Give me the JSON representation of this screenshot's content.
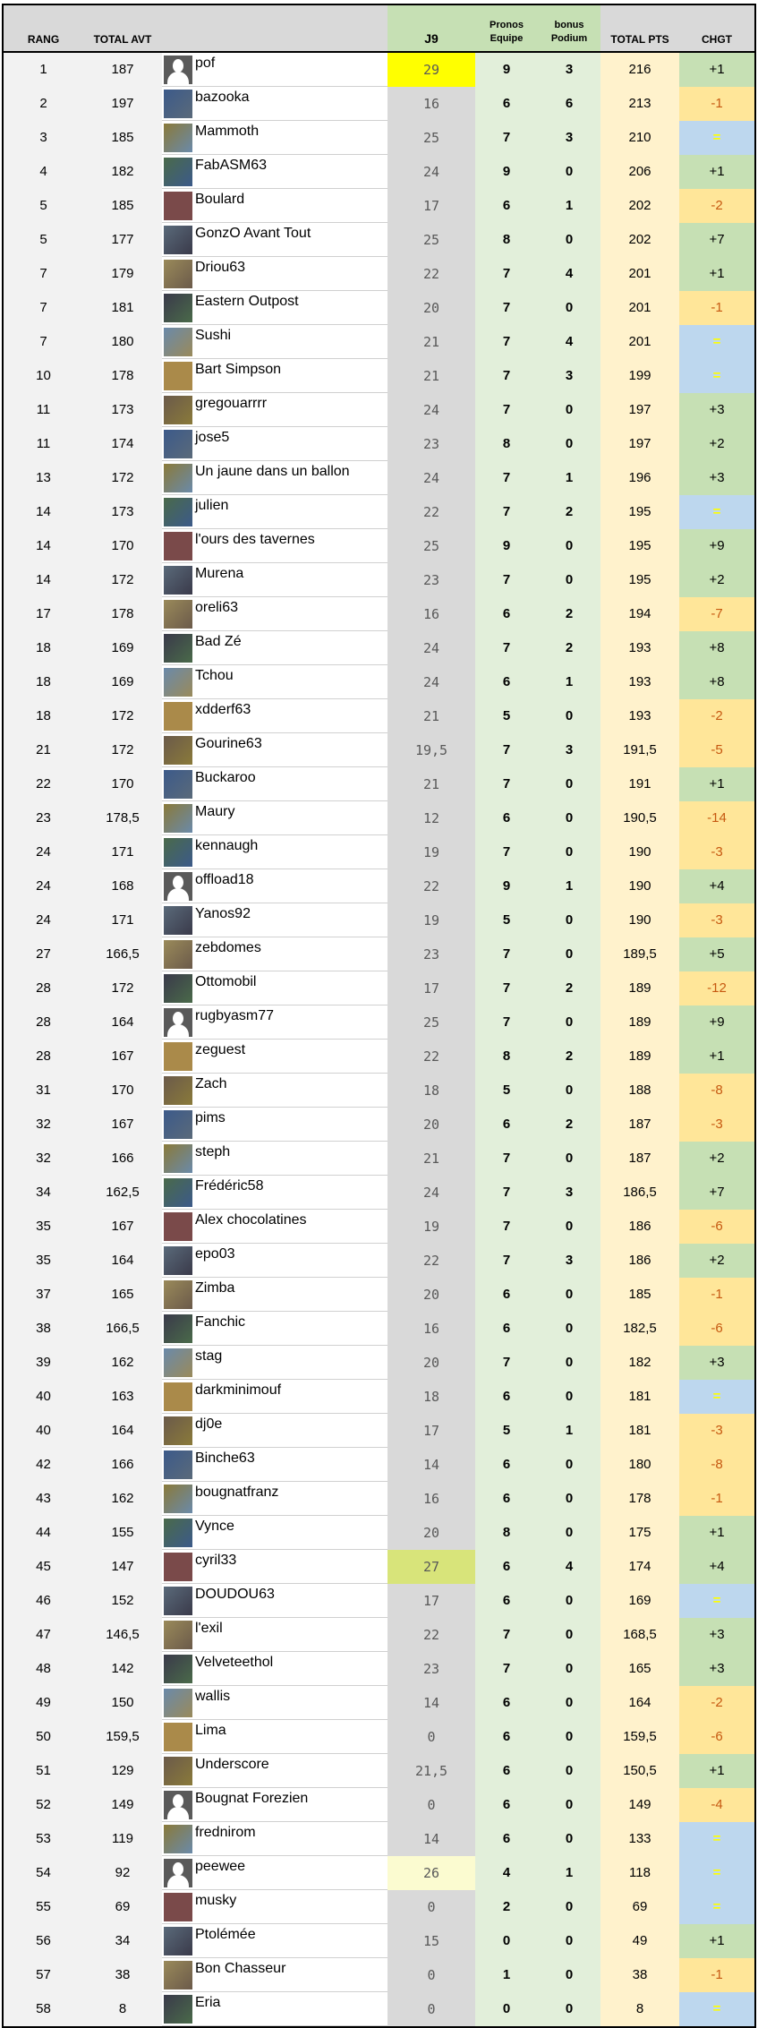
{
  "header": {
    "rang": "RANG",
    "total_avt": "TOTAL AVT",
    "name": "",
    "j9": "J9",
    "pronos": "Pronos Equipe",
    "bonus": "bonus Podium",
    "total_pts": "TOTAL PTS",
    "chgt": "CHGT"
  },
  "colors": {
    "header_bg": "#d9d9d9",
    "header_green": "#c6e0b4",
    "j9_bg": "#d9d9d9",
    "pronos_bg": "#e2efda",
    "total_bg": "#fff2cc",
    "up_bg": "#c6e0b4",
    "down_bg": "#ffe699",
    "down_text": "#c65911",
    "equal_bg": "#bdd7ee",
    "equal_text": "#ffff00",
    "highlight_top": "#ffff00",
    "highlight_second": "#d8e47a",
    "highlight_third": "#fbfbd0"
  },
  "rows": [
    {
      "rang": "1",
      "avt": "187",
      "name": "pof",
      "avatar": "silhouette",
      "j9": "29",
      "pronos": "9",
      "bonus": "3",
      "total": "216",
      "chgt": "+1",
      "j9_highlight": "#ffff00"
    },
    {
      "rang": "2",
      "avt": "197",
      "name": "bazooka",
      "avatar": "photo",
      "j9": "16",
      "pronos": "6",
      "bonus": "6",
      "total": "213",
      "chgt": "-1"
    },
    {
      "rang": "3",
      "avt": "185",
      "name": "Mammoth",
      "avatar": "photo",
      "j9": "25",
      "pronos": "7",
      "bonus": "3",
      "total": "210",
      "chgt": "="
    },
    {
      "rang": "4",
      "avt": "182",
      "name": "FabASM63",
      "avatar": "photo",
      "j9": "24",
      "pronos": "9",
      "bonus": "0",
      "total": "206",
      "chgt": "+1"
    },
    {
      "rang": "5",
      "avt": "185",
      "name": "Boulard",
      "avatar": "photo",
      "j9": "17",
      "pronos": "6",
      "bonus": "1",
      "total": "202",
      "chgt": "-2"
    },
    {
      "rang": "5",
      "avt": "177",
      "name": "GonzO Avant Tout",
      "avatar": "photo",
      "j9": "25",
      "pronos": "8",
      "bonus": "0",
      "total": "202",
      "chgt": "+7"
    },
    {
      "rang": "7",
      "avt": "179",
      "name": "Driou63",
      "avatar": "photo",
      "j9": "22",
      "pronos": "7",
      "bonus": "4",
      "total": "201",
      "chgt": "+1"
    },
    {
      "rang": "7",
      "avt": "181",
      "name": "Eastern Outpost",
      "avatar": "photo",
      "j9": "20",
      "pronos": "7",
      "bonus": "0",
      "total": "201",
      "chgt": "-1"
    },
    {
      "rang": "7",
      "avt": "180",
      "name": "Sushi",
      "avatar": "photo",
      "j9": "21",
      "pronos": "7",
      "bonus": "4",
      "total": "201",
      "chgt": "="
    },
    {
      "rang": "10",
      "avt": "178",
      "name": "Bart Simpson",
      "avatar": "photo",
      "j9": "21",
      "pronos": "7",
      "bonus": "3",
      "total": "199",
      "chgt": "="
    },
    {
      "rang": "11",
      "avt": "173",
      "name": "gregouarrrr",
      "avatar": "photo",
      "j9": "24",
      "pronos": "7",
      "bonus": "0",
      "total": "197",
      "chgt": "+3"
    },
    {
      "rang": "11",
      "avt": "174",
      "name": "jose5",
      "avatar": "photo",
      "j9": "23",
      "pronos": "8",
      "bonus": "0",
      "total": "197",
      "chgt": "+2"
    },
    {
      "rang": "13",
      "avt": "172",
      "name": "Un jaune dans un ballon",
      "avatar": "photo",
      "j9": "24",
      "pronos": "7",
      "bonus": "1",
      "total": "196",
      "chgt": "+3"
    },
    {
      "rang": "14",
      "avt": "173",
      "name": "julien",
      "avatar": "photo",
      "j9": "22",
      "pronos": "7",
      "bonus": "2",
      "total": "195",
      "chgt": "="
    },
    {
      "rang": "14",
      "avt": "170",
      "name": "l'ours des tavernes",
      "avatar": "photo",
      "j9": "25",
      "pronos": "9",
      "bonus": "0",
      "total": "195",
      "chgt": "+9"
    },
    {
      "rang": "14",
      "avt": "172",
      "name": "Murena",
      "avatar": "photo",
      "j9": "23",
      "pronos": "7",
      "bonus": "0",
      "total": "195",
      "chgt": "+2"
    },
    {
      "rang": "17",
      "avt": "178",
      "name": "oreli63",
      "avatar": "photo",
      "j9": "16",
      "pronos": "6",
      "bonus": "2",
      "total": "194",
      "chgt": "-7"
    },
    {
      "rang": "18",
      "avt": "169",
      "name": "Bad Zé",
      "avatar": "photo",
      "j9": "24",
      "pronos": "7",
      "bonus": "2",
      "total": "193",
      "chgt": "+8"
    },
    {
      "rang": "18",
      "avt": "169",
      "name": "Tchou",
      "avatar": "photo",
      "j9": "24",
      "pronos": "6",
      "bonus": "1",
      "total": "193",
      "chgt": "+8"
    },
    {
      "rang": "18",
      "avt": "172",
      "name": "xdderf63",
      "avatar": "photo",
      "j9": "21",
      "pronos": "5",
      "bonus": "0",
      "total": "193",
      "chgt": "-2"
    },
    {
      "rang": "21",
      "avt": "172",
      "name": "Gourine63",
      "avatar": "photo",
      "j9": "19,5",
      "pronos": "7",
      "bonus": "3",
      "total": "191,5",
      "chgt": "-5"
    },
    {
      "rang": "22",
      "avt": "170",
      "name": "Buckaroo",
      "avatar": "photo",
      "j9": "21",
      "pronos": "7",
      "bonus": "0",
      "total": "191",
      "chgt": "+1"
    },
    {
      "rang": "23",
      "avt": "178,5",
      "name": "Maury",
      "avatar": "photo",
      "j9": "12",
      "pronos": "6",
      "bonus": "0",
      "total": "190,5",
      "chgt": "-14"
    },
    {
      "rang": "24",
      "avt": "171",
      "name": "kennaugh",
      "avatar": "photo",
      "j9": "19",
      "pronos": "7",
      "bonus": "0",
      "total": "190",
      "chgt": "-3"
    },
    {
      "rang": "24",
      "avt": "168",
      "name": "offload18",
      "avatar": "silhouette",
      "j9": "22",
      "pronos": "9",
      "bonus": "1",
      "total": "190",
      "chgt": "+4"
    },
    {
      "rang": "24",
      "avt": "171",
      "name": "Yanos92",
      "avatar": "photo",
      "j9": "19",
      "pronos": "5",
      "bonus": "0",
      "total": "190",
      "chgt": "-3"
    },
    {
      "rang": "27",
      "avt": "166,5",
      "name": "zebdomes",
      "avatar": "photo",
      "j9": "23",
      "pronos": "7",
      "bonus": "0",
      "total": "189,5",
      "chgt": "+5"
    },
    {
      "rang": "28",
      "avt": "172",
      "name": "Ottomobil",
      "avatar": "photo",
      "j9": "17",
      "pronos": "7",
      "bonus": "2",
      "total": "189",
      "chgt": "-12"
    },
    {
      "rang": "28",
      "avt": "164",
      "name": "rugbyasm77",
      "avatar": "silhouette",
      "j9": "25",
      "pronos": "7",
      "bonus": "0",
      "total": "189",
      "chgt": "+9"
    },
    {
      "rang": "28",
      "avt": "167",
      "name": "zeguest",
      "avatar": "photo",
      "j9": "22",
      "pronos": "8",
      "bonus": "2",
      "total": "189",
      "chgt": "+1"
    },
    {
      "rang": "31",
      "avt": "170",
      "name": "Zach",
      "avatar": "photo",
      "j9": "18",
      "pronos": "5",
      "bonus": "0",
      "total": "188",
      "chgt": "-8"
    },
    {
      "rang": "32",
      "avt": "167",
      "name": "pims",
      "avatar": "photo",
      "j9": "20",
      "pronos": "6",
      "bonus": "2",
      "total": "187",
      "chgt": "-3"
    },
    {
      "rang": "32",
      "avt": "166",
      "name": "steph",
      "avatar": "photo",
      "j9": "21",
      "pronos": "7",
      "bonus": "0",
      "total": "187",
      "chgt": "+2"
    },
    {
      "rang": "34",
      "avt": "162,5",
      "name": "Frédéric58",
      "avatar": "photo",
      "j9": "24",
      "pronos": "7",
      "bonus": "3",
      "total": "186,5",
      "chgt": "+7"
    },
    {
      "rang": "35",
      "avt": "167",
      "name": "Alex chocolatines",
      "avatar": "photo",
      "j9": "19",
      "pronos": "7",
      "bonus": "0",
      "total": "186",
      "chgt": "-6"
    },
    {
      "rang": "35",
      "avt": "164",
      "name": "epo03",
      "avatar": "photo",
      "j9": "22",
      "pronos": "7",
      "bonus": "3",
      "total": "186",
      "chgt": "+2"
    },
    {
      "rang": "37",
      "avt": "165",
      "name": "Zimba",
      "avatar": "photo",
      "j9": "20",
      "pronos": "6",
      "bonus": "0",
      "total": "185",
      "chgt": "-1"
    },
    {
      "rang": "38",
      "avt": "166,5",
      "name": "Fanchic",
      "avatar": "photo",
      "j9": "16",
      "pronos": "6",
      "bonus": "0",
      "total": "182,5",
      "chgt": "-6"
    },
    {
      "rang": "39",
      "avt": "162",
      "name": "stag",
      "avatar": "photo",
      "j9": "20",
      "pronos": "7",
      "bonus": "0",
      "total": "182",
      "chgt": "+3"
    },
    {
      "rang": "40",
      "avt": "163",
      "name": "darkminimouf",
      "avatar": "photo",
      "j9": "18",
      "pronos": "6",
      "bonus": "0",
      "total": "181",
      "chgt": "="
    },
    {
      "rang": "40",
      "avt": "164",
      "name": "dj0e",
      "avatar": "photo",
      "j9": "17",
      "pronos": "5",
      "bonus": "1",
      "total": "181",
      "chgt": "-3"
    },
    {
      "rang": "42",
      "avt": "166",
      "name": "Binche63",
      "avatar": "photo",
      "j9": "14",
      "pronos": "6",
      "bonus": "0",
      "total": "180",
      "chgt": "-8"
    },
    {
      "rang": "43",
      "avt": "162",
      "name": "bougnatfranz",
      "avatar": "photo",
      "j9": "16",
      "pronos": "6",
      "bonus": "0",
      "total": "178",
      "chgt": "-1"
    },
    {
      "rang": "44",
      "avt": "155",
      "name": "Vynce",
      "avatar": "photo",
      "j9": "20",
      "pronos": "8",
      "bonus": "0",
      "total": "175",
      "chgt": "+1"
    },
    {
      "rang": "45",
      "avt": "147",
      "name": "cyril33",
      "avatar": "photo",
      "j9": "27",
      "pronos": "6",
      "bonus": "4",
      "total": "174",
      "chgt": "+4",
      "j9_highlight": "#d8e47a"
    },
    {
      "rang": "46",
      "avt": "152",
      "name": "DOUDOU63",
      "avatar": "photo",
      "j9": "17",
      "pronos": "6",
      "bonus": "0",
      "total": "169",
      "chgt": "="
    },
    {
      "rang": "47",
      "avt": "146,5",
      "name": "l'exil",
      "avatar": "photo",
      "j9": "22",
      "pronos": "7",
      "bonus": "0",
      "total": "168,5",
      "chgt": "+3"
    },
    {
      "rang": "48",
      "avt": "142",
      "name": "Velveteethol",
      "avatar": "photo",
      "j9": "23",
      "pronos": "7",
      "bonus": "0",
      "total": "165",
      "chgt": "+3"
    },
    {
      "rang": "49",
      "avt": "150",
      "name": "wallis",
      "avatar": "photo",
      "j9": "14",
      "pronos": "6",
      "bonus": "0",
      "total": "164",
      "chgt": "-2"
    },
    {
      "rang": "50",
      "avt": "159,5",
      "name": "Lima",
      "avatar": "photo",
      "j9": "0",
      "pronos": "6",
      "bonus": "0",
      "total": "159,5",
      "chgt": "-6"
    },
    {
      "rang": "51",
      "avt": "129",
      "name": "Underscore",
      "avatar": "photo",
      "j9": "21,5",
      "pronos": "6",
      "bonus": "0",
      "total": "150,5",
      "chgt": "+1"
    },
    {
      "rang": "52",
      "avt": "149",
      "name": "Bougnat Forezien",
      "avatar": "silhouette",
      "j9": "0",
      "pronos": "6",
      "bonus": "0",
      "total": "149",
      "chgt": "-4"
    },
    {
      "rang": "53",
      "avt": "119",
      "name": "frednirom",
      "avatar": "photo",
      "j9": "14",
      "pronos": "6",
      "bonus": "0",
      "total": "133",
      "chgt": "="
    },
    {
      "rang": "54",
      "avt": "92",
      "name": "peewee",
      "avatar": "silhouette",
      "j9": "26",
      "pronos": "4",
      "bonus": "1",
      "total": "118",
      "chgt": "=",
      "j9_highlight": "#fbfbd0"
    },
    {
      "rang": "55",
      "avt": "69",
      "name": "musky",
      "avatar": "photo",
      "j9": "0",
      "pronos": "2",
      "bonus": "0",
      "total": "69",
      "chgt": "="
    },
    {
      "rang": "56",
      "avt": "34",
      "name": "Ptolémée",
      "avatar": "photo",
      "j9": "15",
      "pronos": "0",
      "bonus": "0",
      "total": "49",
      "chgt": "+1"
    },
    {
      "rang": "57",
      "avt": "38",
      "name": "Bon Chasseur",
      "avatar": "photo",
      "j9": "0",
      "pronos": "1",
      "bonus": "0",
      "total": "38",
      "chgt": "-1"
    },
    {
      "rang": "58",
      "avt": "8",
      "name": "Eria",
      "avatar": "photo",
      "j9": "0",
      "pronos": "0",
      "bonus": "0",
      "total": "8",
      "chgt": "="
    }
  ]
}
